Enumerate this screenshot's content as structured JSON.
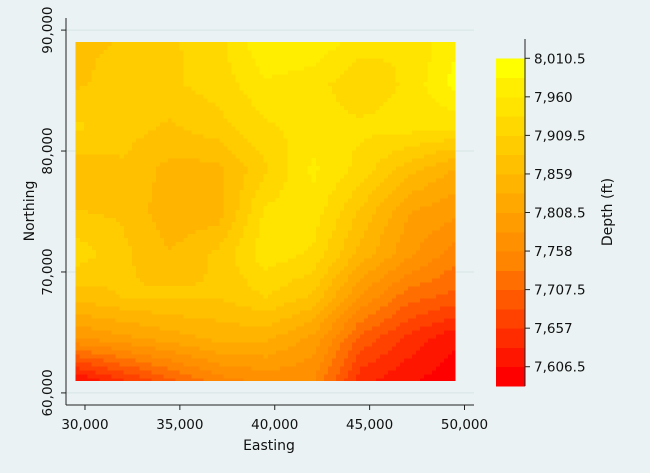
{
  "chart_data": {
    "type": "heatmap",
    "subtype": "filled-contour",
    "xlabel": "Easting",
    "ylabel": "Northing",
    "xlim": [
      29000,
      50500
    ],
    "ylim": [
      59000,
      91000
    ],
    "data_extent": {
      "x": [
        29500,
        49500
      ],
      "y": [
        61000,
        89000
      ]
    },
    "xticks": [
      30000,
      35000,
      40000,
      45000,
      50000
    ],
    "xtick_labels": [
      "30,000",
      "35,000",
      "40,000",
      "45,000",
      "50,000"
    ],
    "yticks": [
      60000,
      70000,
      80000,
      90000
    ],
    "ytick_labels": [
      "60,000",
      "70,000",
      "80,000",
      "90,000"
    ],
    "grid": true,
    "grid_orientation": "horizontal",
    "colorbar": {
      "title": "Depth (ft)",
      "levels": [
        7581.25,
        7606.5,
        7631.75,
        7657,
        7682.25,
        7707.5,
        7732.75,
        7758,
        7783.25,
        7808.5,
        7833.75,
        7859,
        7884.25,
        7909.5,
        7934.75,
        7960,
        7985.25,
        8010.5,
        8035.75
      ],
      "colors": [
        "#ff0000",
        "#ff1600",
        "#ff2c00",
        "#ff4200",
        "#ff5800",
        "#ff6e00",
        "#ff8400",
        "#ff9000",
        "#ff9c00",
        "#ffa800",
        "#ffb400",
        "#ffc000",
        "#ffcc00",
        "#ffd800",
        "#ffe400",
        "#ffee00",
        "#ffff00"
      ],
      "tick_values": [
        7606.5,
        7657,
        7707.5,
        7758,
        7808.5,
        7859,
        7909.5,
        7960,
        8010.5
      ],
      "tick_labels": [
        "7,606.5",
        "7,657",
        "7,707.5",
        "7,758",
        "7,808.5",
        "7,859",
        "7,909.5",
        "7,960",
        "8,010.5"
      ]
    },
    "grid_values": {
      "x": [
        29500,
        32000,
        34500,
        37000,
        39500,
        42000,
        44500,
        47000,
        49500
      ],
      "y": [
        89000,
        85500,
        82000,
        78500,
        75000,
        71500,
        68000,
        64500,
        61000
      ],
      "z": [
        [
          7880,
          7885,
          7905,
          7925,
          7985,
          7980,
          7945,
          7935,
          7980
        ],
        [
          7880,
          7895,
          7905,
          7920,
          7955,
          7945,
          7915,
          7940,
          7995
        ],
        [
          7915,
          7895,
          7880,
          7900,
          7930,
          7945,
          7940,
          7945,
          7940
        ],
        [
          7865,
          7880,
          7850,
          7850,
          7905,
          7965,
          7925,
          7870,
          7830
        ],
        [
          7885,
          7880,
          7840,
          7845,
          7940,
          7950,
          7880,
          7810,
          7790
        ],
        [
          7925,
          7890,
          7860,
          7890,
          7950,
          7930,
          7850,
          7790,
          7745
        ],
        [
          7870,
          7885,
          7890,
          7885,
          7910,
          7880,
          7780,
          7720,
          7700
        ],
        [
          7780,
          7800,
          7820,
          7840,
          7840,
          7800,
          7700,
          7650,
          7610
        ],
        [
          7600,
          7650,
          7700,
          7745,
          7765,
          7760,
          7640,
          7610,
          7590
        ]
      ]
    }
  }
}
